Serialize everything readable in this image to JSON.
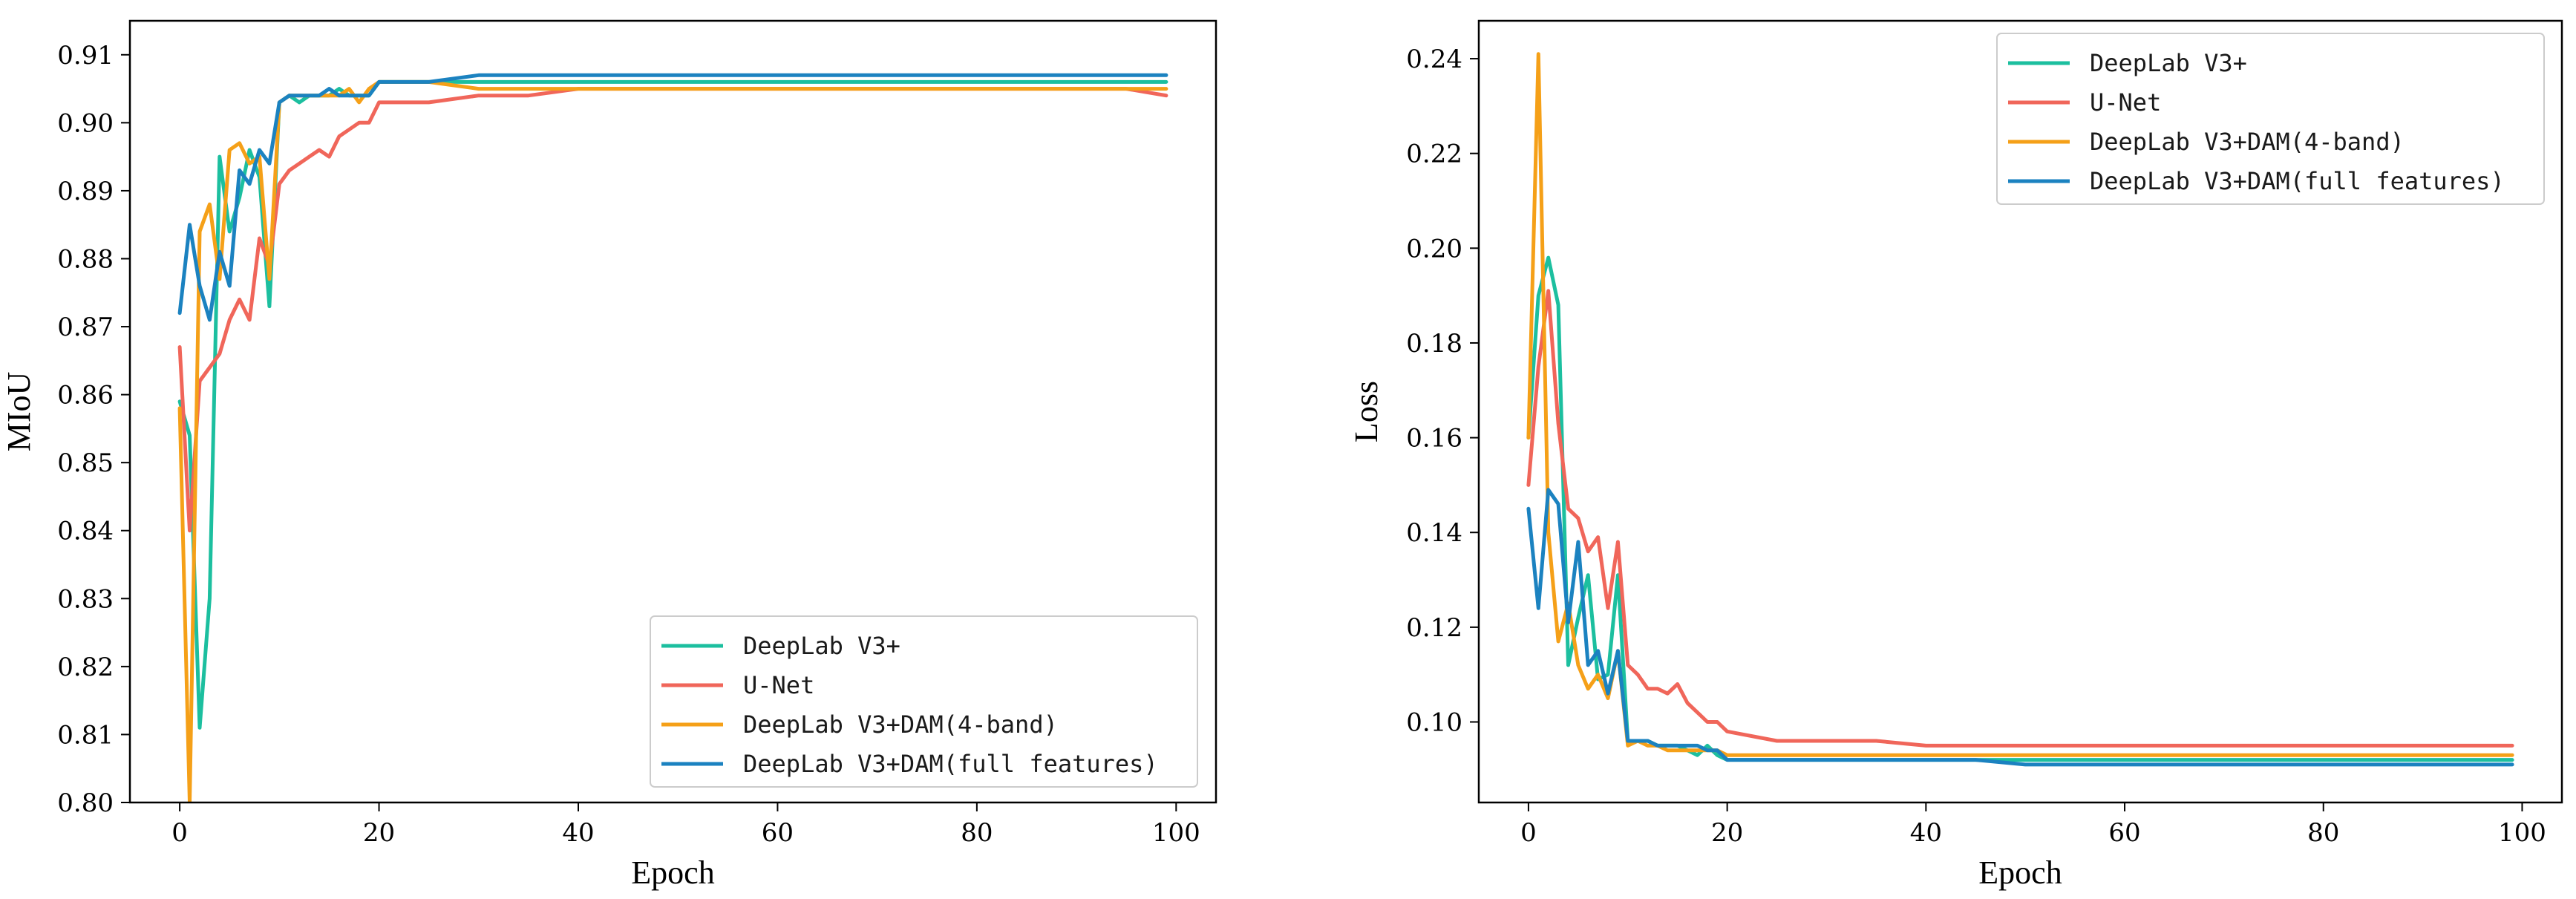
{
  "chart_data": [
    {
      "type": "line",
      "xlabel": "Epoch",
      "ylabel": "MIoU",
      "xlim": [
        -5,
        104
      ],
      "ylim": [
        0.8,
        0.915
      ],
      "xticks": [
        0,
        20,
        40,
        60,
        80,
        100
      ],
      "yticks": [
        0.8,
        0.81,
        0.82,
        0.83,
        0.84,
        0.85,
        0.86,
        0.87,
        0.88,
        0.89,
        0.9,
        0.91
      ],
      "grid": false,
      "legend_position": "lower-right",
      "series": [
        {
          "name": "DeepLab V3+",
          "color": "#1cbf9f",
          "x": [
            0,
            1,
            2,
            3,
            4,
            5,
            6,
            7,
            8,
            9,
            10,
            11,
            12,
            13,
            14,
            15,
            16,
            17,
            18,
            19,
            20,
            25,
            30,
            35,
            40,
            45,
            50,
            55,
            60,
            65,
            70,
            75,
            80,
            85,
            90,
            95,
            99
          ],
          "values": [
            0.859,
            0.854,
            0.811,
            0.83,
            0.895,
            0.884,
            0.889,
            0.896,
            0.892,
            0.873,
            0.903,
            0.904,
            0.903,
            0.904,
            0.904,
            0.904,
            0.905,
            0.904,
            0.904,
            0.904,
            0.906,
            0.906,
            0.906,
            0.906,
            0.906,
            0.906,
            0.906,
            0.906,
            0.906,
            0.906,
            0.906,
            0.906,
            0.906,
            0.906,
            0.906,
            0.906,
            0.906
          ]
        },
        {
          "name": "U-Net",
          "color": "#f0665a",
          "x": [
            0,
            1,
            2,
            3,
            4,
            5,
            6,
            7,
            8,
            9,
            10,
            11,
            12,
            13,
            14,
            15,
            16,
            17,
            18,
            19,
            20,
            25,
            30,
            35,
            40,
            45,
            50,
            55,
            60,
            65,
            70,
            75,
            80,
            85,
            90,
            95,
            99
          ],
          "values": [
            0.867,
            0.84,
            0.862,
            0.864,
            0.866,
            0.871,
            0.874,
            0.871,
            0.883,
            0.879,
            0.891,
            0.893,
            0.894,
            0.895,
            0.896,
            0.895,
            0.898,
            0.899,
            0.9,
            0.9,
            0.903,
            0.903,
            0.904,
            0.904,
            0.905,
            0.905,
            0.905,
            0.905,
            0.905,
            0.905,
            0.905,
            0.905,
            0.905,
            0.905,
            0.905,
            0.905,
            0.904
          ]
        },
        {
          "name": "DeepLab V3+DAM(4-band)",
          "color": "#f5a018",
          "x": [
            0,
            1,
            2,
            3,
            4,
            5,
            6,
            7,
            8,
            9,
            10,
            11,
            12,
            13,
            14,
            15,
            16,
            17,
            18,
            19,
            20,
            25,
            30,
            35,
            40,
            45,
            50,
            55,
            60,
            65,
            70,
            75,
            80,
            85,
            90,
            95,
            99
          ],
          "values": [
            0.858,
            0.8,
            0.884,
            0.888,
            0.877,
            0.896,
            0.897,
            0.894,
            0.895,
            0.877,
            0.903,
            0.904,
            0.904,
            0.904,
            0.904,
            0.904,
            0.904,
            0.905,
            0.903,
            0.905,
            0.906,
            0.906,
            0.905,
            0.905,
            0.905,
            0.905,
            0.905,
            0.905,
            0.905,
            0.905,
            0.905,
            0.905,
            0.905,
            0.905,
            0.905,
            0.905,
            0.905
          ]
        },
        {
          "name": "DeepLab V3+DAM(full features)",
          "color": "#1b82c0",
          "x": [
            0,
            1,
            2,
            3,
            4,
            5,
            6,
            7,
            8,
            9,
            10,
            11,
            12,
            13,
            14,
            15,
            16,
            17,
            18,
            19,
            20,
            25,
            30,
            35,
            40,
            45,
            50,
            55,
            60,
            65,
            70,
            75,
            80,
            85,
            90,
            95,
            99
          ],
          "values": [
            0.872,
            0.885,
            0.876,
            0.871,
            0.881,
            0.876,
            0.893,
            0.891,
            0.896,
            0.894,
            0.903,
            0.904,
            0.904,
            0.904,
            0.904,
            0.905,
            0.904,
            0.904,
            0.904,
            0.904,
            0.906,
            0.906,
            0.907,
            0.907,
            0.907,
            0.907,
            0.907,
            0.907,
            0.907,
            0.907,
            0.907,
            0.907,
            0.907,
            0.907,
            0.907,
            0.907,
            0.907
          ]
        }
      ]
    },
    {
      "type": "line",
      "xlabel": "Epoch",
      "ylabel": "Loss",
      "xlim": [
        -5,
        104
      ],
      "ylim": [
        0.083,
        0.248
      ],
      "xticks": [
        0,
        20,
        40,
        60,
        80,
        100
      ],
      "yticks": [
        0.1,
        0.12,
        0.14,
        0.16,
        0.18,
        0.2,
        0.22,
        0.24
      ],
      "grid": false,
      "legend_position": "upper-right",
      "series": [
        {
          "name": "DeepLab V3+",
          "color": "#1cbf9f",
          "x": [
            0,
            1,
            2,
            3,
            4,
            5,
            6,
            7,
            8,
            9,
            10,
            11,
            12,
            13,
            14,
            15,
            16,
            17,
            18,
            19,
            20,
            25,
            30,
            35,
            40,
            45,
            50,
            55,
            60,
            65,
            70,
            75,
            80,
            85,
            90,
            95,
            99
          ],
          "values": [
            0.16,
            0.19,
            0.198,
            0.188,
            0.112,
            0.122,
            0.131,
            0.109,
            0.11,
            0.131,
            0.096,
            0.096,
            0.096,
            0.095,
            0.095,
            0.095,
            0.094,
            0.093,
            0.095,
            0.093,
            0.092,
            0.092,
            0.092,
            0.092,
            0.092,
            0.092,
            0.092,
            0.092,
            0.092,
            0.092,
            0.092,
            0.092,
            0.092,
            0.092,
            0.092,
            0.092,
            0.092
          ]
        },
        {
          "name": "U-Net",
          "color": "#f0665a",
          "x": [
            0,
            1,
            2,
            3,
            4,
            5,
            6,
            7,
            8,
            9,
            10,
            11,
            12,
            13,
            14,
            15,
            16,
            17,
            18,
            19,
            20,
            25,
            30,
            35,
            40,
            45,
            50,
            55,
            60,
            65,
            70,
            75,
            80,
            85,
            90,
            95,
            99
          ],
          "values": [
            0.15,
            0.175,
            0.191,
            0.163,
            0.145,
            0.143,
            0.136,
            0.139,
            0.124,
            0.138,
            0.112,
            0.11,
            0.107,
            0.107,
            0.106,
            0.108,
            0.104,
            0.102,
            0.1,
            0.1,
            0.098,
            0.096,
            0.096,
            0.096,
            0.095,
            0.095,
            0.095,
            0.095,
            0.095,
            0.095,
            0.095,
            0.095,
            0.095,
            0.095,
            0.095,
            0.095,
            0.095
          ]
        },
        {
          "name": "DeepLab V3+DAM(4-band)",
          "color": "#f5a018",
          "x": [
            0,
            1,
            2,
            3,
            4,
            5,
            6,
            7,
            8,
            9,
            10,
            11,
            12,
            13,
            14,
            15,
            16,
            17,
            18,
            19,
            20,
            25,
            30,
            35,
            40,
            45,
            50,
            55,
            60,
            65,
            70,
            75,
            80,
            85,
            90,
            95,
            99
          ],
          "values": [
            0.16,
            0.241,
            0.14,
            0.117,
            0.125,
            0.112,
            0.107,
            0.11,
            0.105,
            0.115,
            0.095,
            0.096,
            0.095,
            0.095,
            0.094,
            0.094,
            0.094,
            0.094,
            0.094,
            0.094,
            0.093,
            0.093,
            0.093,
            0.093,
            0.093,
            0.093,
            0.093,
            0.093,
            0.093,
            0.093,
            0.093,
            0.093,
            0.093,
            0.093,
            0.093,
            0.093,
            0.093
          ]
        },
        {
          "name": "DeepLab V3+DAM(full features)",
          "color": "#1b82c0",
          "x": [
            0,
            1,
            2,
            3,
            4,
            5,
            6,
            7,
            8,
            9,
            10,
            11,
            12,
            13,
            14,
            15,
            16,
            17,
            18,
            19,
            20,
            25,
            30,
            35,
            40,
            45,
            50,
            55,
            60,
            65,
            70,
            75,
            80,
            85,
            90,
            95,
            99
          ],
          "values": [
            0.145,
            0.124,
            0.149,
            0.146,
            0.121,
            0.138,
            0.112,
            0.115,
            0.106,
            0.115,
            0.096,
            0.096,
            0.096,
            0.095,
            0.095,
            0.095,
            0.095,
            0.095,
            0.094,
            0.094,
            0.092,
            0.092,
            0.092,
            0.092,
            0.092,
            0.092,
            0.091,
            0.091,
            0.091,
            0.091,
            0.091,
            0.091,
            0.091,
            0.091,
            0.091,
            0.091,
            0.091
          ]
        }
      ]
    }
  ]
}
